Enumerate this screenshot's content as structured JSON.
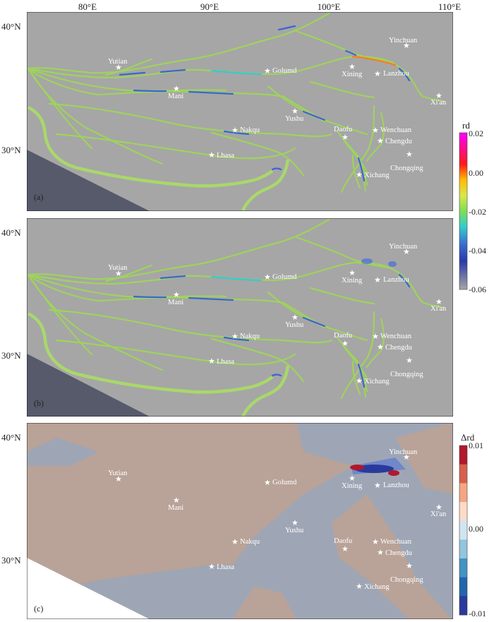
{
  "axes": {
    "lon_ticks": [
      "80°E",
      "90°E",
      "100°E",
      "110°E"
    ],
    "lat_ticks": [
      "40°N",
      "30°N"
    ]
  },
  "panels": [
    {
      "tag": "(a)"
    },
    {
      "tag": "(b)"
    },
    {
      "tag": "(c)"
    }
  ],
  "cities": {
    "yinchuan": "Yinchuan",
    "yutian": "Yutian",
    "golumd": "Golumd",
    "xining": "Xining",
    "lanzhou": "Lanzhou",
    "mani": "Mani",
    "xian": "Xi'an",
    "yushu": "Yushu",
    "nakqu": "Nakqu",
    "daofu": "Daofu",
    "wenchuan": "Wenchuan",
    "chengdu": "Chengdu",
    "lhasa": "Lhasa",
    "chongqing": "Chongqing",
    "xichang": "Xichang"
  },
  "colorbar_rd": {
    "title": "rd",
    "ticks": [
      "0.02",
      "0.00",
      "-0.02",
      "-0.04",
      "-0.06"
    ],
    "colors": [
      "#ff00ff",
      "#ff0000",
      "#ffff00",
      "#7fdd55",
      "#33cccc",
      "#3366cc",
      "#2233aa",
      "#a6a6a6"
    ]
  },
  "colorbar_drd": {
    "title": "Δrd",
    "ticks": [
      "0.01",
      "0.00",
      "-0.01"
    ],
    "colors": [
      "#b2182b",
      "#d6604d",
      "#f4a582",
      "#fddbc7",
      "#d1e5f0",
      "#92c5de",
      "#4393c3",
      "#2166ac",
      "#2a3a9c"
    ]
  },
  "colors": {
    "background": "#a6a6a6",
    "excluded_region": "#565a6b",
    "fault_base": "#9ed35c",
    "land_tan": "#b9a297",
    "land_blue": "#9ea6b5"
  }
}
